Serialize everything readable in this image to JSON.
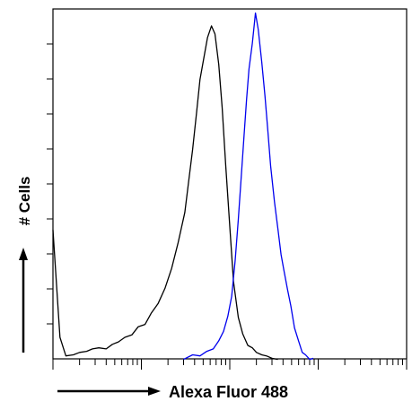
{
  "chart_data": {
    "type": "line",
    "title": "",
    "xlabel": "Alexa Fluor 488",
    "ylabel": "# Cells",
    "x_scale": "log",
    "xlim": [
      0.1,
      1000
    ],
    "ylim": [
      0,
      100
    ],
    "grid": false,
    "legend": "none",
    "series": [
      {
        "color": "#000000",
        "x": [
          0.1,
          0.12,
          0.14,
          0.17,
          0.2,
          0.24,
          0.28,
          0.33,
          0.4,
          0.47,
          0.55,
          0.65,
          0.78,
          0.92,
          1.1,
          1.3,
          1.55,
          1.85,
          2.2,
          2.6,
          3.1,
          3.4,
          3.8,
          4.2,
          4.6,
          5.1,
          5.6,
          6.2,
          6.8,
          7.5,
          8.2,
          9.0,
          10,
          11,
          12.5,
          14,
          16,
          18,
          20,
          23,
          26,
          30,
          35
        ],
        "y": [
          37,
          6,
          1,
          1,
          2,
          2,
          3,
          3,
          3,
          4,
          5,
          6,
          7,
          9,
          10,
          13,
          16,
          20,
          26,
          33,
          42,
          50,
          60,
          70,
          80,
          86,
          92,
          95,
          93,
          84,
          72,
          55,
          38,
          22,
          12,
          7,
          4,
          3,
          2,
          1,
          1,
          0,
          0
        ]
      },
      {
        "color": "#0000ee",
        "x": [
          3.0,
          3.8,
          4.6,
          5.5,
          6.5,
          7.5,
          8.5,
          9.5,
          10.5,
          11.5,
          12.5,
          13.5,
          14.5,
          15.5,
          16.5,
          18,
          19.5,
          21,
          23,
          25,
          27,
          29,
          32,
          35,
          38,
          41,
          45,
          49,
          54,
          60,
          66,
          72,
          80,
          88
        ],
        "y": [
          0,
          1,
          1,
          2,
          3,
          5,
          8,
          12,
          18,
          28,
          40,
          52,
          64,
          74,
          83,
          90,
          99,
          94,
          85,
          75,
          65,
          55,
          45,
          37,
          30,
          25,
          20,
          15,
          9,
          5,
          2,
          1,
          0,
          0
        ]
      }
    ]
  }
}
